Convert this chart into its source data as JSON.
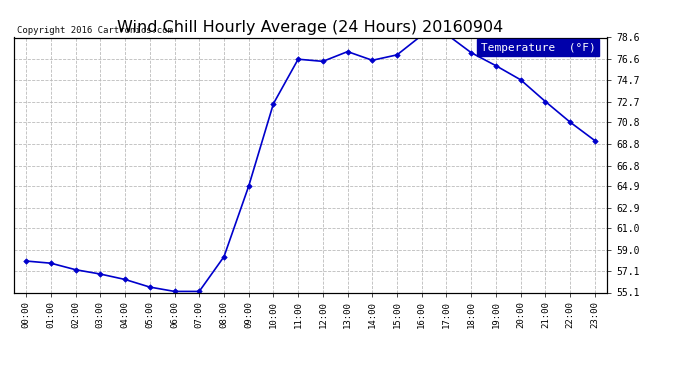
{
  "title": "Wind Chill Hourly Average (24 Hours) 20160904",
  "copyright_text": "Copyright 2016 Cartronics.com",
  "legend_label": "Temperature  (°F)",
  "x_labels": [
    "00:00",
    "01:00",
    "02:00",
    "03:00",
    "04:00",
    "05:00",
    "06:00",
    "07:00",
    "08:00",
    "09:00",
    "10:00",
    "11:00",
    "12:00",
    "13:00",
    "14:00",
    "15:00",
    "16:00",
    "17:00",
    "18:00",
    "19:00",
    "20:00",
    "21:00",
    "22:00",
    "23:00"
  ],
  "y_values": [
    58.0,
    57.8,
    57.2,
    56.8,
    56.3,
    55.6,
    55.2,
    55.2,
    58.4,
    64.9,
    72.5,
    76.6,
    76.4,
    77.3,
    76.5,
    77.0,
    78.8,
    78.9,
    77.2,
    76.0,
    74.7,
    72.7,
    70.8,
    69.1
  ],
  "ylim_min": 55.1,
  "ylim_max": 78.6,
  "yticks": [
    55.1,
    57.1,
    59.0,
    61.0,
    62.9,
    64.9,
    66.8,
    68.8,
    70.8,
    72.7,
    74.7,
    76.6,
    78.6
  ],
  "line_color": "#0000cc",
  "marker_color": "#0000cc",
  "bg_color": "#ffffff",
  "plot_bg_color": "#ffffff",
  "grid_color": "#bbbbbb",
  "title_fontsize": 11.5,
  "legend_bg_color": "#0000aa",
  "legend_text_color": "#ffffff"
}
